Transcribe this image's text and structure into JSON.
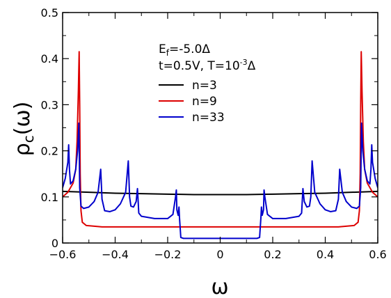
{
  "chart_data": {
    "type": "line",
    "xlabel": "ω",
    "ylabel": "ρ",
    "ylabel_sub": "c",
    "ylabel_arg": "(ω)",
    "xlim": [
      -0.6,
      0.6
    ],
    "ylim": [
      0,
      0.5
    ],
    "xticks": [
      -0.6,
      -0.4,
      -0.2,
      0,
      0.2,
      0.4,
      0.6
    ],
    "xtick_labels": [
      "−0.6",
      "−0.4",
      "−0.2",
      "0",
      "0.2",
      "0.4",
      "0.6"
    ],
    "yticks": [
      0,
      0.1,
      0.2,
      0.3,
      0.4,
      0.5
    ],
    "ytick_labels": [
      "0",
      "0.1",
      "0.2",
      "0.3",
      "0.4",
      "0.5"
    ],
    "annotation_line1": {
      "base": "E",
      "sub": "f",
      "rest": "=-5.0Δ"
    },
    "annotation_line2": {
      "pre": "t=0.5V, T=10",
      "sup": "-3",
      "post": "Δ"
    },
    "legend_position": "upper-center",
    "grid": false,
    "series": [
      {
        "name": "n=3",
        "color": "#000000",
        "points": [
          [
            -0.6,
            0.112
          ],
          [
            -0.5,
            0.11
          ],
          [
            -0.4,
            0.108
          ],
          [
            -0.3,
            0.107
          ],
          [
            -0.2,
            0.106
          ],
          [
            -0.1,
            0.105
          ],
          [
            0,
            0.105
          ],
          [
            0.1,
            0.105
          ],
          [
            0.2,
            0.106
          ],
          [
            0.3,
            0.107
          ],
          [
            0.4,
            0.108
          ],
          [
            0.5,
            0.11
          ],
          [
            0.6,
            0.112
          ]
        ]
      },
      {
        "name": "n=9",
        "color": "#dd0000",
        "points": [
          [
            -0.6,
            0.1
          ],
          [
            -0.58,
            0.11
          ],
          [
            -0.56,
            0.13
          ],
          [
            -0.55,
            0.16
          ],
          [
            -0.545,
            0.22
          ],
          [
            -0.54,
            0.33
          ],
          [
            -0.537,
            0.415
          ],
          [
            -0.535,
            0.3
          ],
          [
            -0.533,
            0.15
          ],
          [
            -0.53,
            0.07
          ],
          [
            -0.525,
            0.045
          ],
          [
            -0.51,
            0.038
          ],
          [
            -0.45,
            0.035
          ],
          [
            0,
            0.035
          ],
          [
            0.45,
            0.035
          ],
          [
            0.51,
            0.038
          ],
          [
            0.525,
            0.045
          ],
          [
            0.53,
            0.07
          ],
          [
            0.533,
            0.15
          ],
          [
            0.535,
            0.3
          ],
          [
            0.537,
            0.415
          ],
          [
            0.54,
            0.33
          ],
          [
            0.545,
            0.22
          ],
          [
            0.55,
            0.16
          ],
          [
            0.56,
            0.13
          ],
          [
            0.58,
            0.11
          ],
          [
            0.6,
            0.1
          ]
        ]
      },
      {
        "name": "n=33",
        "color": "#0000cc",
        "points": [
          [
            -0.6,
            0.12
          ],
          [
            -0.59,
            0.14
          ],
          [
            -0.58,
            0.175
          ],
          [
            -0.577,
            0.213
          ],
          [
            -0.574,
            0.16
          ],
          [
            -0.57,
            0.128
          ],
          [
            -0.56,
            0.135
          ],
          [
            -0.55,
            0.16
          ],
          [
            -0.543,
            0.2
          ],
          [
            -0.538,
            0.26
          ],
          [
            -0.535,
            0.12
          ],
          [
            -0.53,
            0.08
          ],
          [
            -0.52,
            0.075
          ],
          [
            -0.5,
            0.078
          ],
          [
            -0.48,
            0.09
          ],
          [
            -0.465,
            0.11
          ],
          [
            -0.455,
            0.16
          ],
          [
            -0.45,
            0.095
          ],
          [
            -0.44,
            0.07
          ],
          [
            -0.42,
            0.068
          ],
          [
            -0.4,
            0.072
          ],
          [
            -0.38,
            0.085
          ],
          [
            -0.36,
            0.11
          ],
          [
            -0.35,
            0.178
          ],
          [
            -0.345,
            0.1
          ],
          [
            -0.34,
            0.08
          ],
          [
            -0.33,
            0.078
          ],
          [
            -0.32,
            0.09
          ],
          [
            -0.315,
            0.118
          ],
          [
            -0.31,
            0.065
          ],
          [
            -0.3,
            0.058
          ],
          [
            -0.25,
            0.053
          ],
          [
            -0.2,
            0.053
          ],
          [
            -0.18,
            0.062
          ],
          [
            -0.17,
            0.1
          ],
          [
            -0.167,
            0.115
          ],
          [
            -0.165,
            0.072
          ],
          [
            -0.16,
            0.06
          ],
          [
            -0.157,
            0.078
          ],
          [
            -0.155,
            0.055
          ],
          [
            -0.15,
            0.012
          ],
          [
            -0.14,
            0.01
          ],
          [
            0,
            0.01
          ],
          [
            0.14,
            0.01
          ],
          [
            0.15,
            0.012
          ],
          [
            0.155,
            0.055
          ],
          [
            0.157,
            0.078
          ],
          [
            0.16,
            0.06
          ],
          [
            0.165,
            0.072
          ],
          [
            0.167,
            0.115
          ],
          [
            0.17,
            0.1
          ],
          [
            0.18,
            0.062
          ],
          [
            0.2,
            0.053
          ],
          [
            0.25,
            0.053
          ],
          [
            0.3,
            0.058
          ],
          [
            0.31,
            0.065
          ],
          [
            0.315,
            0.118
          ],
          [
            0.32,
            0.09
          ],
          [
            0.33,
            0.078
          ],
          [
            0.34,
            0.08
          ],
          [
            0.345,
            0.1
          ],
          [
            0.35,
            0.178
          ],
          [
            0.36,
            0.11
          ],
          [
            0.38,
            0.085
          ],
          [
            0.4,
            0.072
          ],
          [
            0.42,
            0.068
          ],
          [
            0.44,
            0.07
          ],
          [
            0.45,
            0.095
          ],
          [
            0.455,
            0.16
          ],
          [
            0.465,
            0.11
          ],
          [
            0.48,
            0.09
          ],
          [
            0.5,
            0.078
          ],
          [
            0.52,
            0.075
          ],
          [
            0.53,
            0.08
          ],
          [
            0.535,
            0.12
          ],
          [
            0.538,
            0.26
          ],
          [
            0.543,
            0.2
          ],
          [
            0.55,
            0.16
          ],
          [
            0.56,
            0.135
          ],
          [
            0.57,
            0.128
          ],
          [
            0.574,
            0.16
          ],
          [
            0.577,
            0.213
          ],
          [
            0.58,
            0.175
          ],
          [
            0.59,
            0.14
          ],
          [
            0.6,
            0.12
          ]
        ]
      }
    ]
  }
}
